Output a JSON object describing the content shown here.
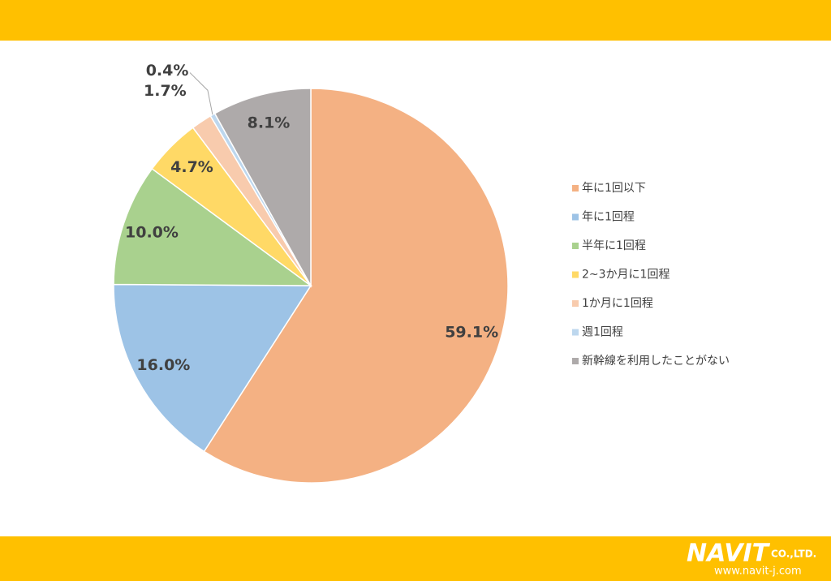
{
  "chart_data": {
    "type": "pie",
    "categories": [
      "年に1回以下",
      "年に1回程",
      "半年に1回程",
      "2~3か月に1回程",
      "1か月に1回程",
      "週1回程",
      "新幹線を利用したことがない"
    ],
    "values": [
      59.1,
      16.0,
      10.0,
      4.7,
      1.7,
      0.4,
      8.1
    ],
    "value_labels": [
      "59.1%",
      "16.0%",
      "10.0%",
      "4.7%",
      "1.7%",
      "0.4%",
      "8.1%"
    ],
    "colors": [
      "#f4b183",
      "#9dc3e6",
      "#a9d18e",
      "#ffd966",
      "#f8cbad",
      "#bdd7ee",
      "#aeaaaa"
    ],
    "legend": "right"
  },
  "footer": {
    "logo": "NAVIT",
    "company": "CO.,LTD.",
    "url": "www.navit-j.com"
  }
}
